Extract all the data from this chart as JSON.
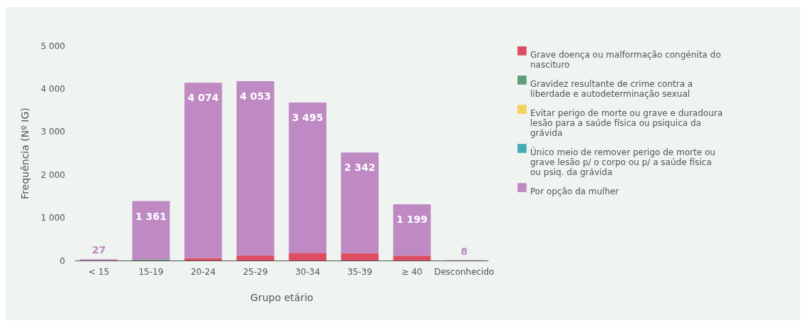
{
  "chart_data": {
    "type": "bar",
    "stacked": true,
    "xlabel": "Grupo etário",
    "ylabel": "Frequência (Nº IG)",
    "categories": [
      "< 15",
      "15-19",
      "20-24",
      "25-29",
      "30-34",
      "35-39",
      "≥ 40",
      "Desconhecido"
    ],
    "series": [
      {
        "name": "Grave doença ou malformação congénita do nascituro",
        "color": "#dc4e60",
        "values": [
          0,
          0,
          60,
          120,
          180,
          170,
          110,
          0
        ]
      },
      {
        "name": "Gravidez resultante de crime contra a liberdade e autodeterminação sexual",
        "color": "#5e9e7b",
        "values": [
          0,
          20,
          0,
          0,
          0,
          0,
          0,
          0
        ]
      },
      {
        "name": "Evitar perigo de morte ou grave e duradoura lesão para a saúde física ou psiquica da grávida",
        "color": "#f2d45c",
        "values": [
          0,
          0,
          0,
          0,
          0,
          0,
          0,
          0
        ]
      },
      {
        "name": "Único meio de remover perigo de morte ou grave lesão p/ o corpo ou p/ a saúde física ou psiq. da grávida",
        "color": "#45adb5",
        "values": [
          0,
          0,
          0,
          0,
          0,
          0,
          0,
          0
        ]
      },
      {
        "name": "Por opção da mulher",
        "color": "#bf89c3",
        "values": [
          27,
          1361,
          4074,
          4053,
          3495,
          2342,
          1199,
          8
        ],
        "value_labels": [
          "27",
          "1 361",
          "4 074",
          "4 053",
          "3 495",
          "2 342",
          "1 199",
          "8"
        ]
      }
    ],
    "ylim": [
      0,
      5000
    ],
    "yticks": [
      0,
      {
        "value": 1000,
        "label": "1 000"
      },
      {
        "value": 2000,
        "label": "2 000"
      },
      {
        "value": 3000,
        "label": "3 000"
      },
      {
        "value": 4000,
        "label": "4 000"
      },
      {
        "value": 5000,
        "label": "5 000"
      }
    ],
    "grid": false,
    "legend": "right"
  }
}
